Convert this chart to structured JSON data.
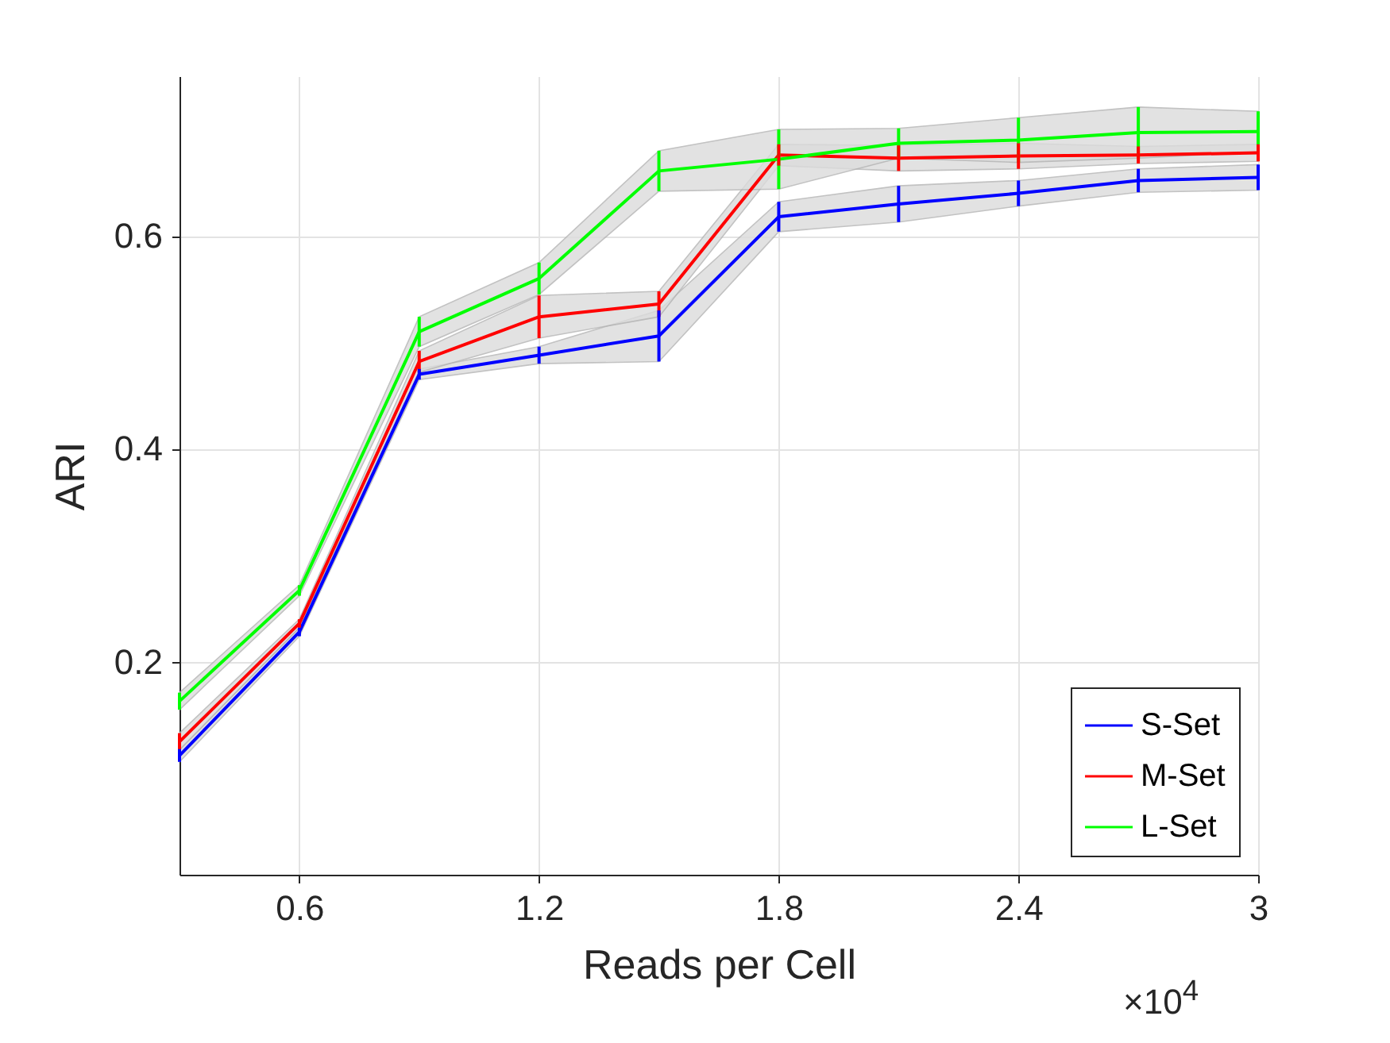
{
  "chart_data": {
    "type": "line",
    "xlabel": "Reads per Cell",
    "ylabel": "ARI",
    "annotations": [
      "×10$^{4}$"
    ],
    "x": [
      0.3,
      0.6,
      0.9,
      1.2,
      1.5,
      1.8,
      2.1,
      2.4,
      2.7,
      3
    ],
    "xlim": [
      0.3,
      3
    ],
    "xticks": [
      0.6,
      1.2,
      1.8,
      2.4,
      3
    ],
    "ylim": [
      0,
      0.75
    ],
    "yticks": [
      0.2,
      0.4,
      0.6
    ],
    "grid": true,
    "legend": "bottom right",
    "marker": "none",
    "line_style": "solid",
    "series": [
      {
        "name": "S-Set",
        "color": "#0000ff",
        "values": [
          0.112,
          0.228,
          0.47,
          0.488,
          0.506,
          0.618,
          0.63,
          0.64,
          0.652,
          0.655
        ],
        "errors": [
          0.006,
          0.004,
          0.005,
          0.008,
          0.024,
          0.014,
          0.017,
          0.012,
          0.011,
          0.012
        ],
        "lower": [
          0.106,
          0.224,
          0.465,
          0.48,
          0.482,
          0.604,
          0.613,
          0.628,
          0.641,
          0.643
        ],
        "upper": [
          0.118,
          0.232,
          0.475,
          0.496,
          0.53,
          0.632,
          0.647,
          0.652,
          0.663,
          0.667
        ]
      },
      {
        "name": "M-Set",
        "color": "#ff0000",
        "values": [
          0.125,
          0.236,
          0.482,
          0.524,
          0.536,
          0.676,
          0.673,
          0.675,
          0.676,
          0.678
        ],
        "errors": [
          0.008,
          0.004,
          0.01,
          0.02,
          0.012,
          0.01,
          0.012,
          0.012,
          0.008,
          0.008
        ],
        "lower": [
          0.117,
          0.232,
          0.472,
          0.504,
          0.524,
          0.666,
          0.661,
          0.663,
          0.668,
          0.67
        ],
        "upper": [
          0.133,
          0.24,
          0.492,
          0.544,
          0.548,
          0.686,
          0.685,
          0.687,
          0.684,
          0.686
        ]
      },
      {
        "name": "L-Set",
        "color": "#00ff00",
        "values": [
          0.163,
          0.267,
          0.51,
          0.56,
          0.661,
          0.672,
          0.687,
          0.69,
          0.697,
          0.698
        ],
        "errors": [
          0.008,
          0.005,
          0.014,
          0.015,
          0.019,
          0.028,
          0.014,
          0.021,
          0.024,
          0.019
        ],
        "lower": [
          0.155,
          0.262,
          0.496,
          0.545,
          0.642,
          0.644,
          0.673,
          0.669,
          0.673,
          0.679
        ],
        "upper": [
          0.171,
          0.272,
          0.524,
          0.575,
          0.68,
          0.7,
          0.701,
          0.711,
          0.721,
          0.717
        ]
      }
    ]
  }
}
